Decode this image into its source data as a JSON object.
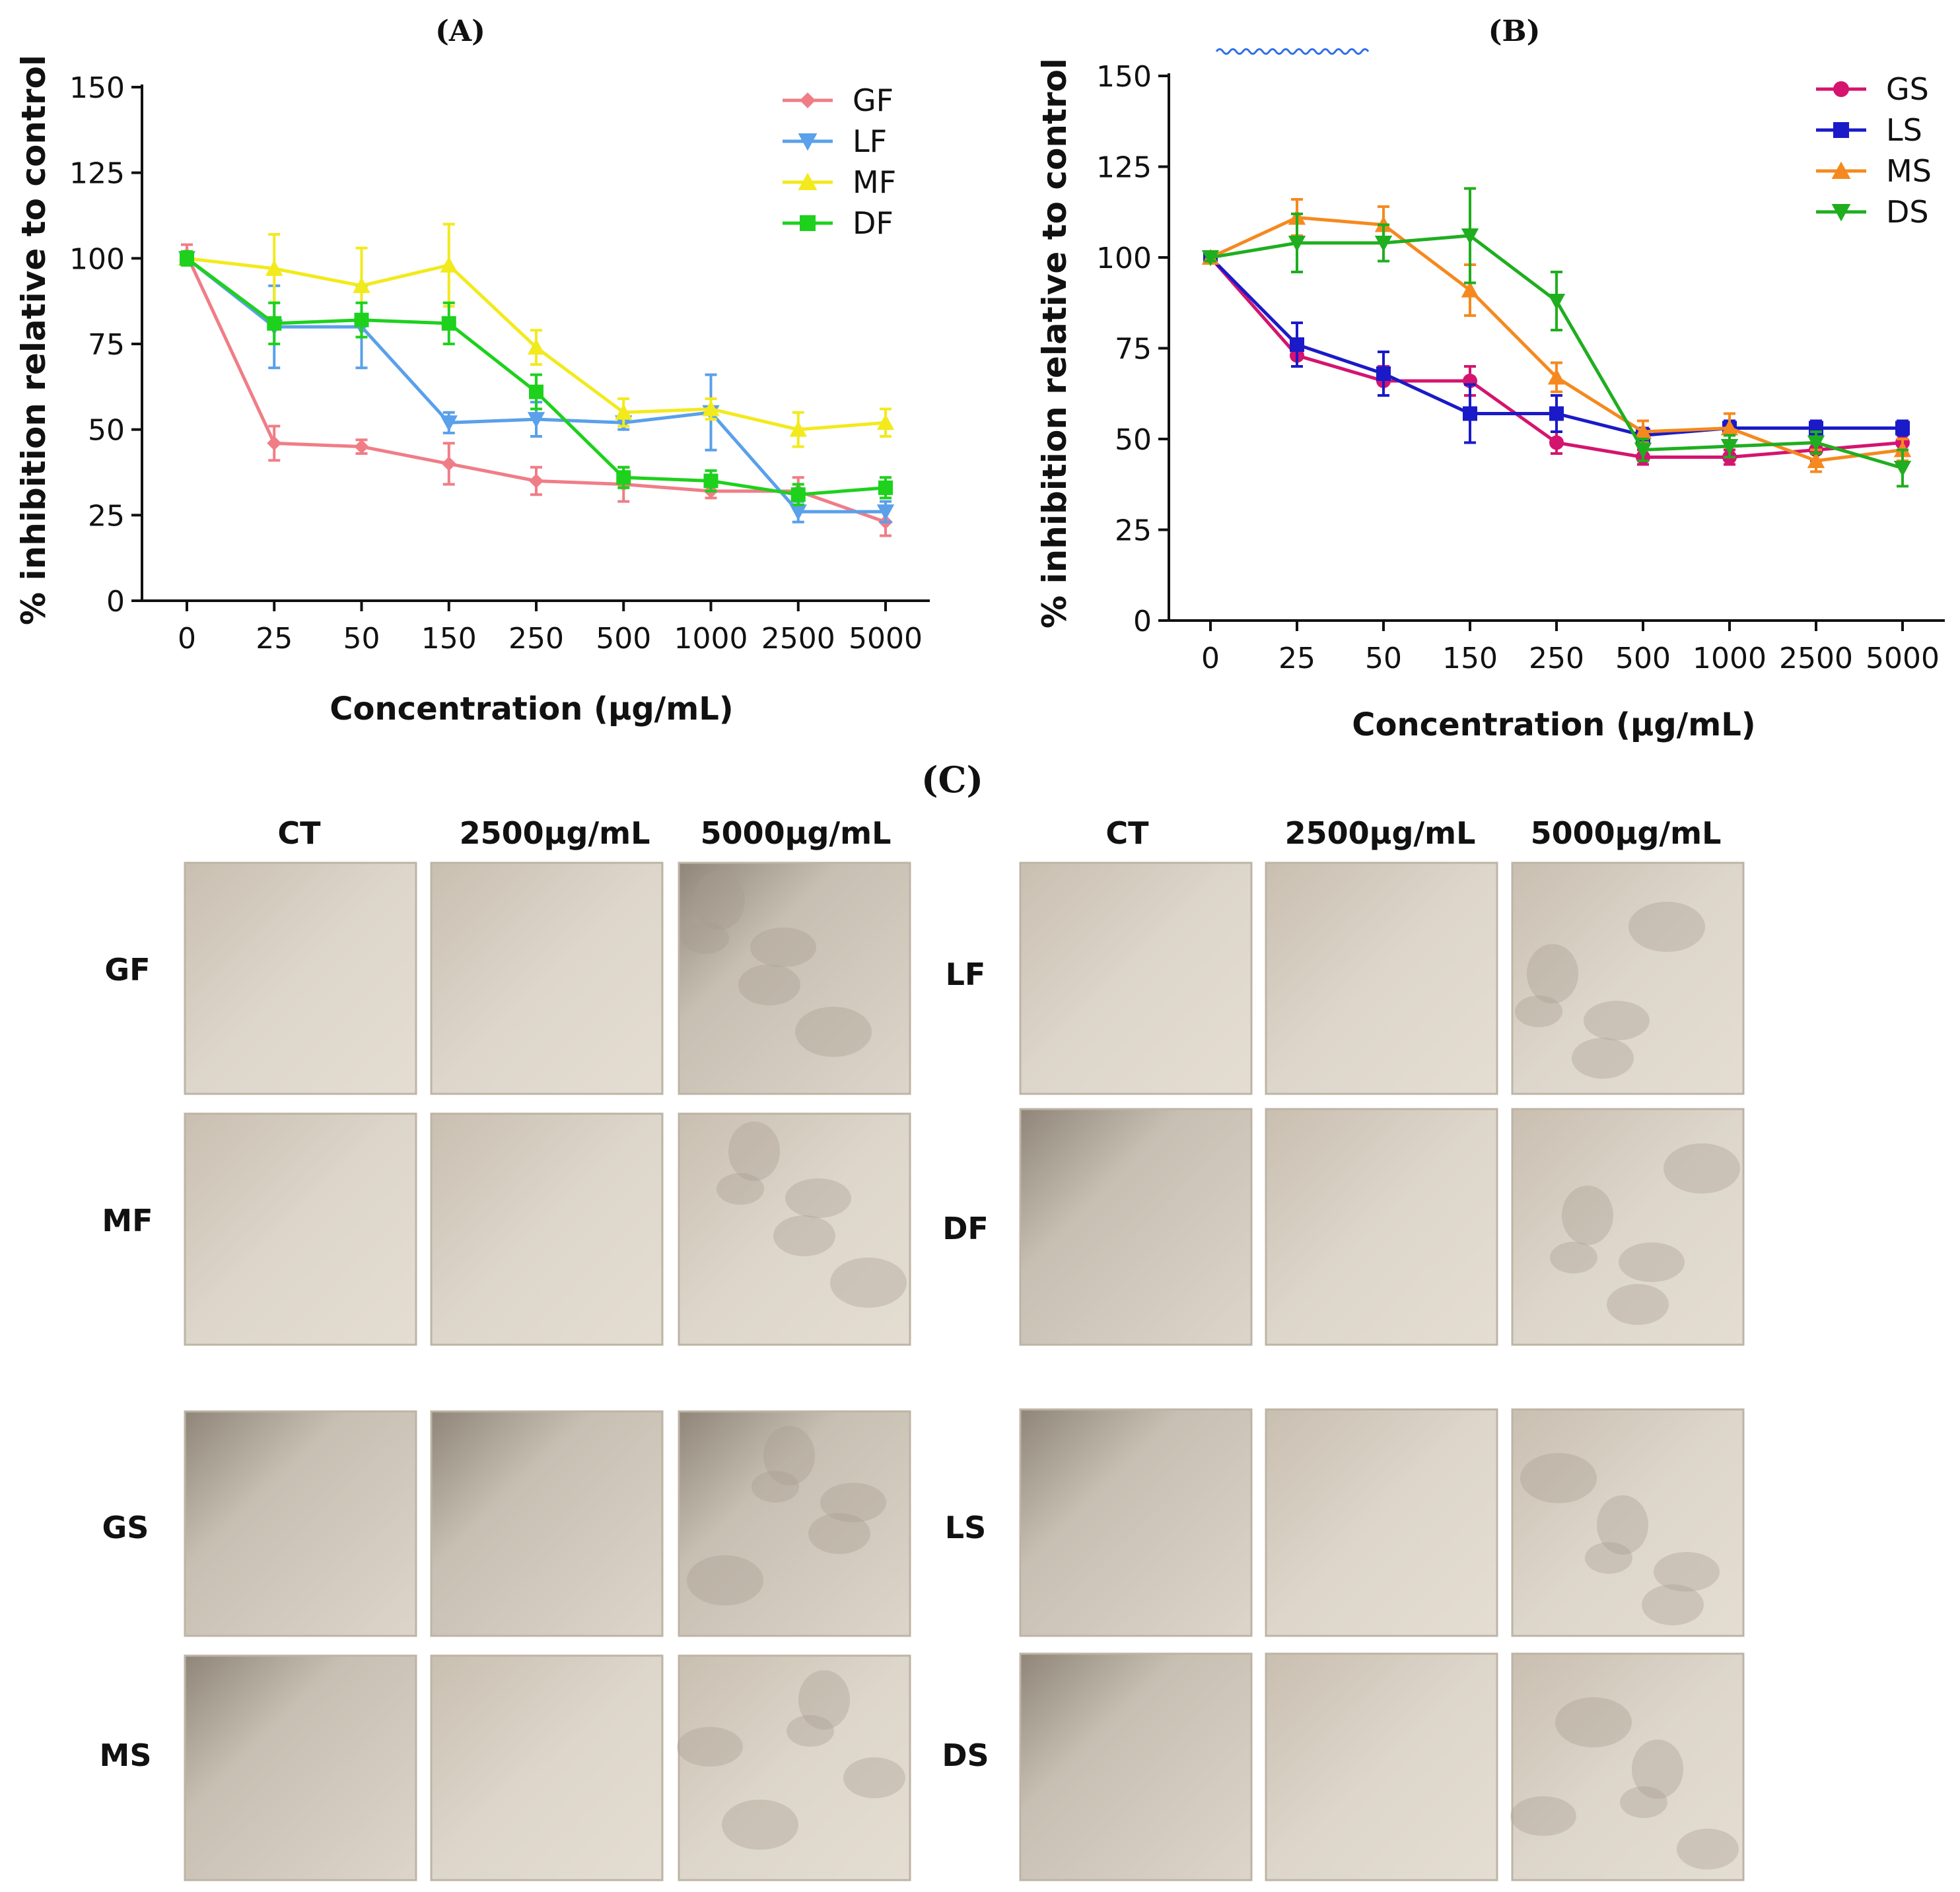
{
  "chart_data": [
    {
      "panel": "(A)",
      "type": "line",
      "title": "(A)",
      "xlabel": "Concentration (µg/mL)",
      "ylabel": "% inhibition relative to control",
      "categories": [
        "0",
        "25",
        "50",
        "150",
        "250",
        "500",
        "1000",
        "2500",
        "5000"
      ],
      "ylim": [
        0,
        150
      ],
      "yticks": [
        0,
        25,
        50,
        75,
        100,
        125,
        150
      ],
      "legend": "top-right",
      "grid": false,
      "series": [
        {
          "name": "GF",
          "color": "#f07d86",
          "marker": "diamond",
          "values": [
            101,
            46,
            45,
            40,
            35,
            34,
            32,
            32,
            23
          ],
          "errors": [
            3,
            5,
            2,
            6,
            4,
            5,
            2,
            4,
            4
          ]
        },
        {
          "name": "LF",
          "color": "#5aa0ea",
          "marker": "triangle-down",
          "values": [
            100,
            80,
            80,
            52,
            53,
            52,
            55,
            26,
            26
          ],
          "errors": [
            2,
            12,
            12,
            3,
            5,
            2,
            11,
            3,
            3
          ]
        },
        {
          "name": "MF",
          "color": "#f2ea1c",
          "marker": "triangle-up",
          "values": [
            100,
            97,
            92,
            98,
            74,
            55,
            56,
            50,
            52
          ],
          "errors": [
            1,
            10,
            11,
            12,
            5,
            4,
            3,
            5,
            4
          ]
        },
        {
          "name": "DF",
          "color": "#1dd11d",
          "marker": "square",
          "values": [
            100,
            81,
            82,
            81,
            61,
            36,
            35,
            31,
            33
          ],
          "errors": [
            2,
            6,
            5,
            6,
            5,
            3,
            3,
            3,
            3
          ]
        }
      ]
    },
    {
      "panel": "(B)",
      "type": "line",
      "title": "(B)",
      "xlabel": "Concentration (µg/mL)",
      "ylabel": "% inhibition relative to control",
      "categories": [
        "0",
        "25",
        "50",
        "150",
        "250",
        "500",
        "1000",
        "2500",
        "5000"
      ],
      "ylim": [
        0,
        150
      ],
      "yticks": [
        0,
        25,
        50,
        75,
        100,
        125,
        150
      ],
      "legend": "top-right",
      "grid": false,
      "series": [
        {
          "name": "GS",
          "color": "#d4146f",
          "marker": "circle",
          "values": [
            100,
            73,
            66,
            66,
            49,
            45,
            45,
            47,
            49
          ],
          "errors": [
            1,
            3,
            4,
            4,
            3,
            2,
            2,
            3,
            2
          ]
        },
        {
          "name": "LS",
          "color": "#1a1ac8",
          "marker": "square",
          "values": [
            100,
            76,
            68,
            57,
            57,
            51,
            53,
            53,
            53
          ],
          "errors": [
            1,
            6,
            6,
            8,
            5,
            2,
            2,
            2,
            2
          ]
        },
        {
          "name": "MS",
          "color": "#f5891f",
          "marker": "triangle-up",
          "values": [
            100,
            111,
            109,
            91,
            67,
            52,
            53,
            44,
            47
          ],
          "errors": [
            1,
            5,
            5,
            7,
            4,
            3,
            4,
            3,
            3
          ]
        },
        {
          "name": "DS",
          "color": "#1fae1f",
          "marker": "triangle-down",
          "values": [
            100,
            104,
            104,
            106,
            88,
            47,
            48,
            49,
            42
          ],
          "errors": [
            1,
            8,
            5,
            13,
            8,
            3,
            3,
            3,
            5
          ]
        }
      ]
    }
  ],
  "micrographs": {
    "title": "(C)",
    "left_headers": [
      "CT",
      "2500µg/mL",
      "5000µg/mL"
    ],
    "right_headers": [
      "CT",
      "2500µg/mL",
      "5000µg/mL"
    ],
    "left_rows": [
      "GF",
      "MF",
      "GS",
      "MS"
    ],
    "right_rows": [
      "LF",
      "DF",
      "LS",
      "DS"
    ]
  }
}
